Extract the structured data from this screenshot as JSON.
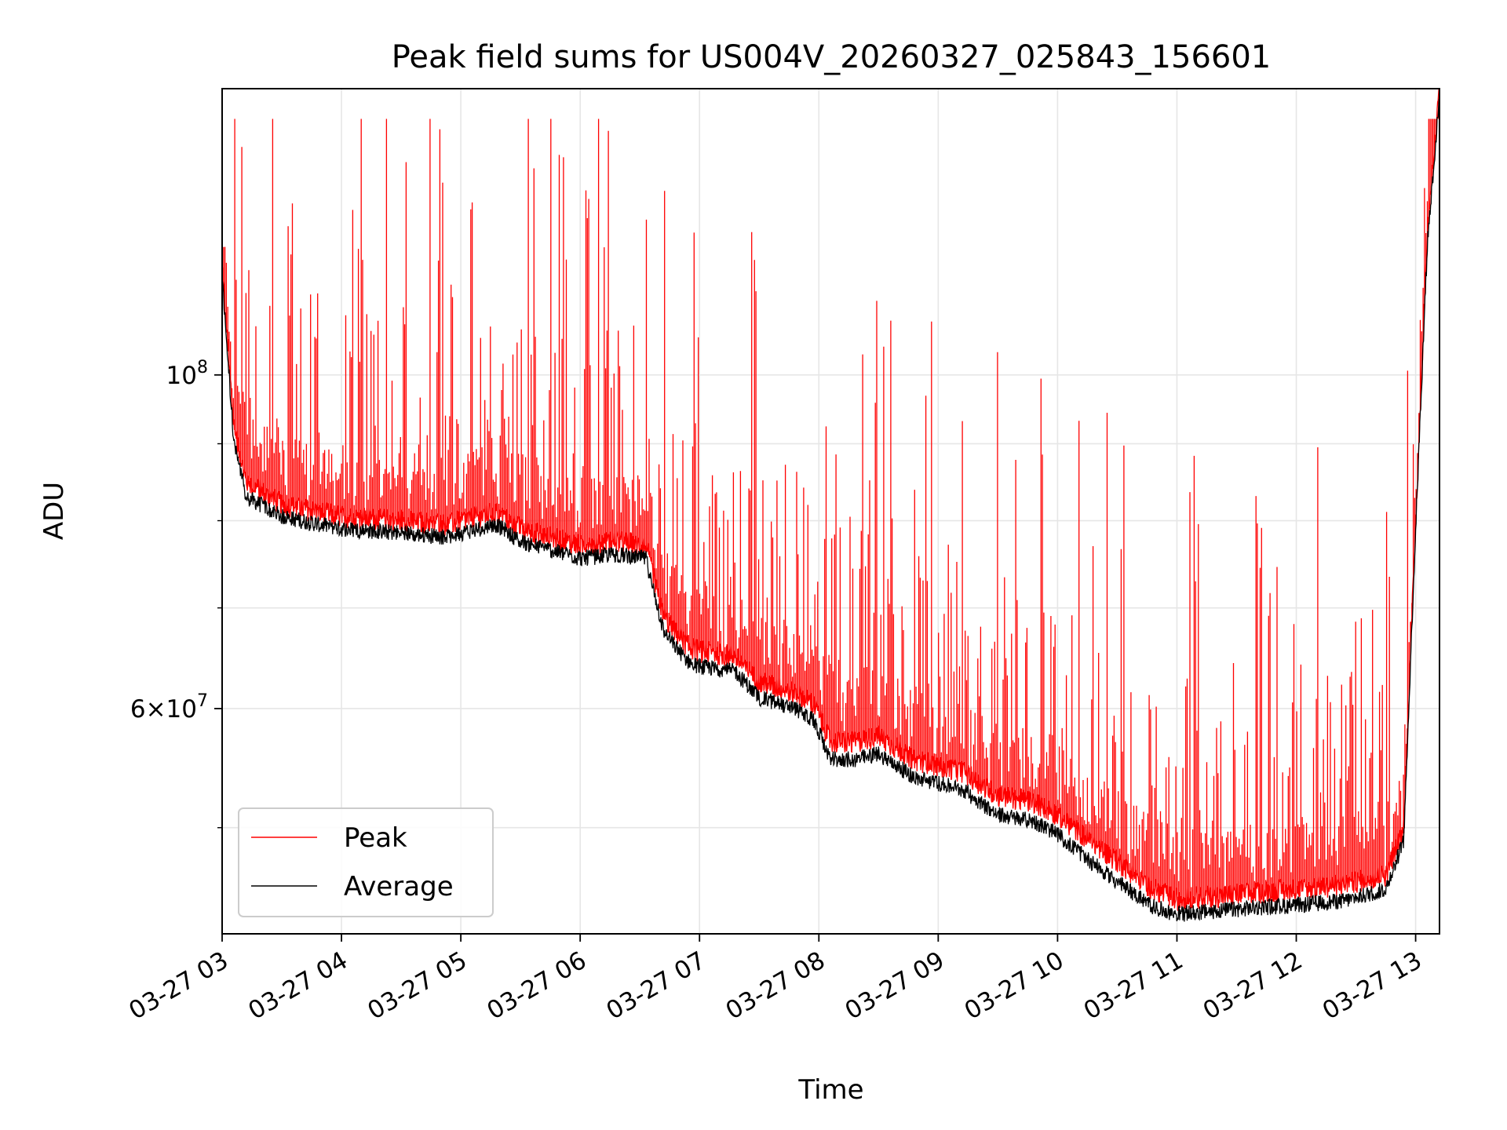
{
  "chart_data": {
    "type": "line",
    "title": "Peak field sums for US004V_20260327_025843_156601",
    "xlabel": "Time",
    "ylabel": "ADU",
    "yscale": "log",
    "ylim": [
      42500000,
      155000000
    ],
    "xlim_hours": [
      3.0,
      13.2
    ],
    "grid": true,
    "legend_position": "lower-left",
    "x_tick_labels": [
      "03-27 03",
      "03-27 04",
      "03-27 05",
      "03-27 06",
      "03-27 07",
      "03-27 08",
      "03-27 09",
      "03-27 10",
      "03-27 11",
      "03-27 12",
      "03-27 13"
    ],
    "x_tick_hours": [
      3,
      4,
      5,
      6,
      7,
      8,
      9,
      10,
      11,
      12,
      13
    ],
    "y_major_ticks": [
      {
        "value": 100000000,
        "base": "10",
        "exp": "8",
        "mant": ""
      },
      {
        "value": 60000000,
        "base": "10",
        "exp": "7",
        "mant": "6"
      }
    ],
    "y_minor_ticks": [
      50000000,
      70000000,
      80000000,
      90000000
    ],
    "series": [
      {
        "name": "Peak",
        "color": "#ff0000",
        "x_hours": [
          3.0,
          3.1,
          3.2,
          3.5,
          4.0,
          4.5,
          4.9,
          5.0,
          5.3,
          5.5,
          6.0,
          6.3,
          6.55,
          6.7,
          6.9,
          7.0,
          7.3,
          7.5,
          7.8,
          7.95,
          8.1,
          8.3,
          8.5,
          8.8,
          9.0,
          9.2,
          9.5,
          9.8,
          10.0,
          10.2,
          10.5,
          10.8,
          11.0,
          11.3,
          11.6,
          12.0,
          12.4,
          12.75,
          12.9,
          13.0,
          13.1,
          13.2
        ],
        "baseline": [
          118000000,
          92000000,
          85000000,
          82000000,
          80500000,
          80000000,
          79500000,
          80000000,
          81000000,
          79000000,
          77000000,
          77500000,
          77000000,
          69000000,
          66000000,
          65500000,
          65000000,
          62500000,
          61500000,
          60500000,
          57000000,
          57000000,
          57500000,
          55500000,
          55000000,
          54500000,
          52500000,
          52000000,
          51000000,
          49500000,
          47500000,
          45500000,
          44800000,
          45000000,
          45200000,
          45500000,
          45800000,
          46500000,
          50000000,
          80000000,
          125000000,
          155000000
        ],
        "spike_count": 320,
        "spike_max": 148000000
      },
      {
        "name": "Average",
        "color": "#000000",
        "x_hours": [
          3.0,
          3.1,
          3.2,
          3.5,
          4.0,
          4.5,
          4.9,
          5.0,
          5.3,
          5.5,
          6.0,
          6.3,
          6.55,
          6.7,
          6.9,
          7.0,
          7.3,
          7.5,
          7.8,
          7.95,
          8.1,
          8.3,
          8.5,
          8.8,
          9.0,
          9.2,
          9.5,
          9.8,
          10.0,
          10.2,
          10.5,
          10.8,
          11.0,
          11.3,
          11.6,
          12.0,
          12.4,
          12.75,
          12.9,
          13.0,
          13.1,
          13.2
        ],
        "baseline": [
          116000000,
          90000000,
          83000000,
          80500000,
          79000000,
          78500000,
          78000000,
          78500000,
          79500000,
          77500000,
          75500000,
          76000000,
          75500000,
          67500000,
          64500000,
          64000000,
          63500000,
          61000000,
          60000000,
          59000000,
          55500000,
          55500000,
          56000000,
          54000000,
          53500000,
          53000000,
          51000000,
          50500000,
          49500000,
          48000000,
          46000000,
          44300000,
          43800000,
          44000000,
          44200000,
          44400000,
          44700000,
          45500000,
          49000000,
          79000000,
          123000000,
          153000000
        ]
      }
    ]
  }
}
